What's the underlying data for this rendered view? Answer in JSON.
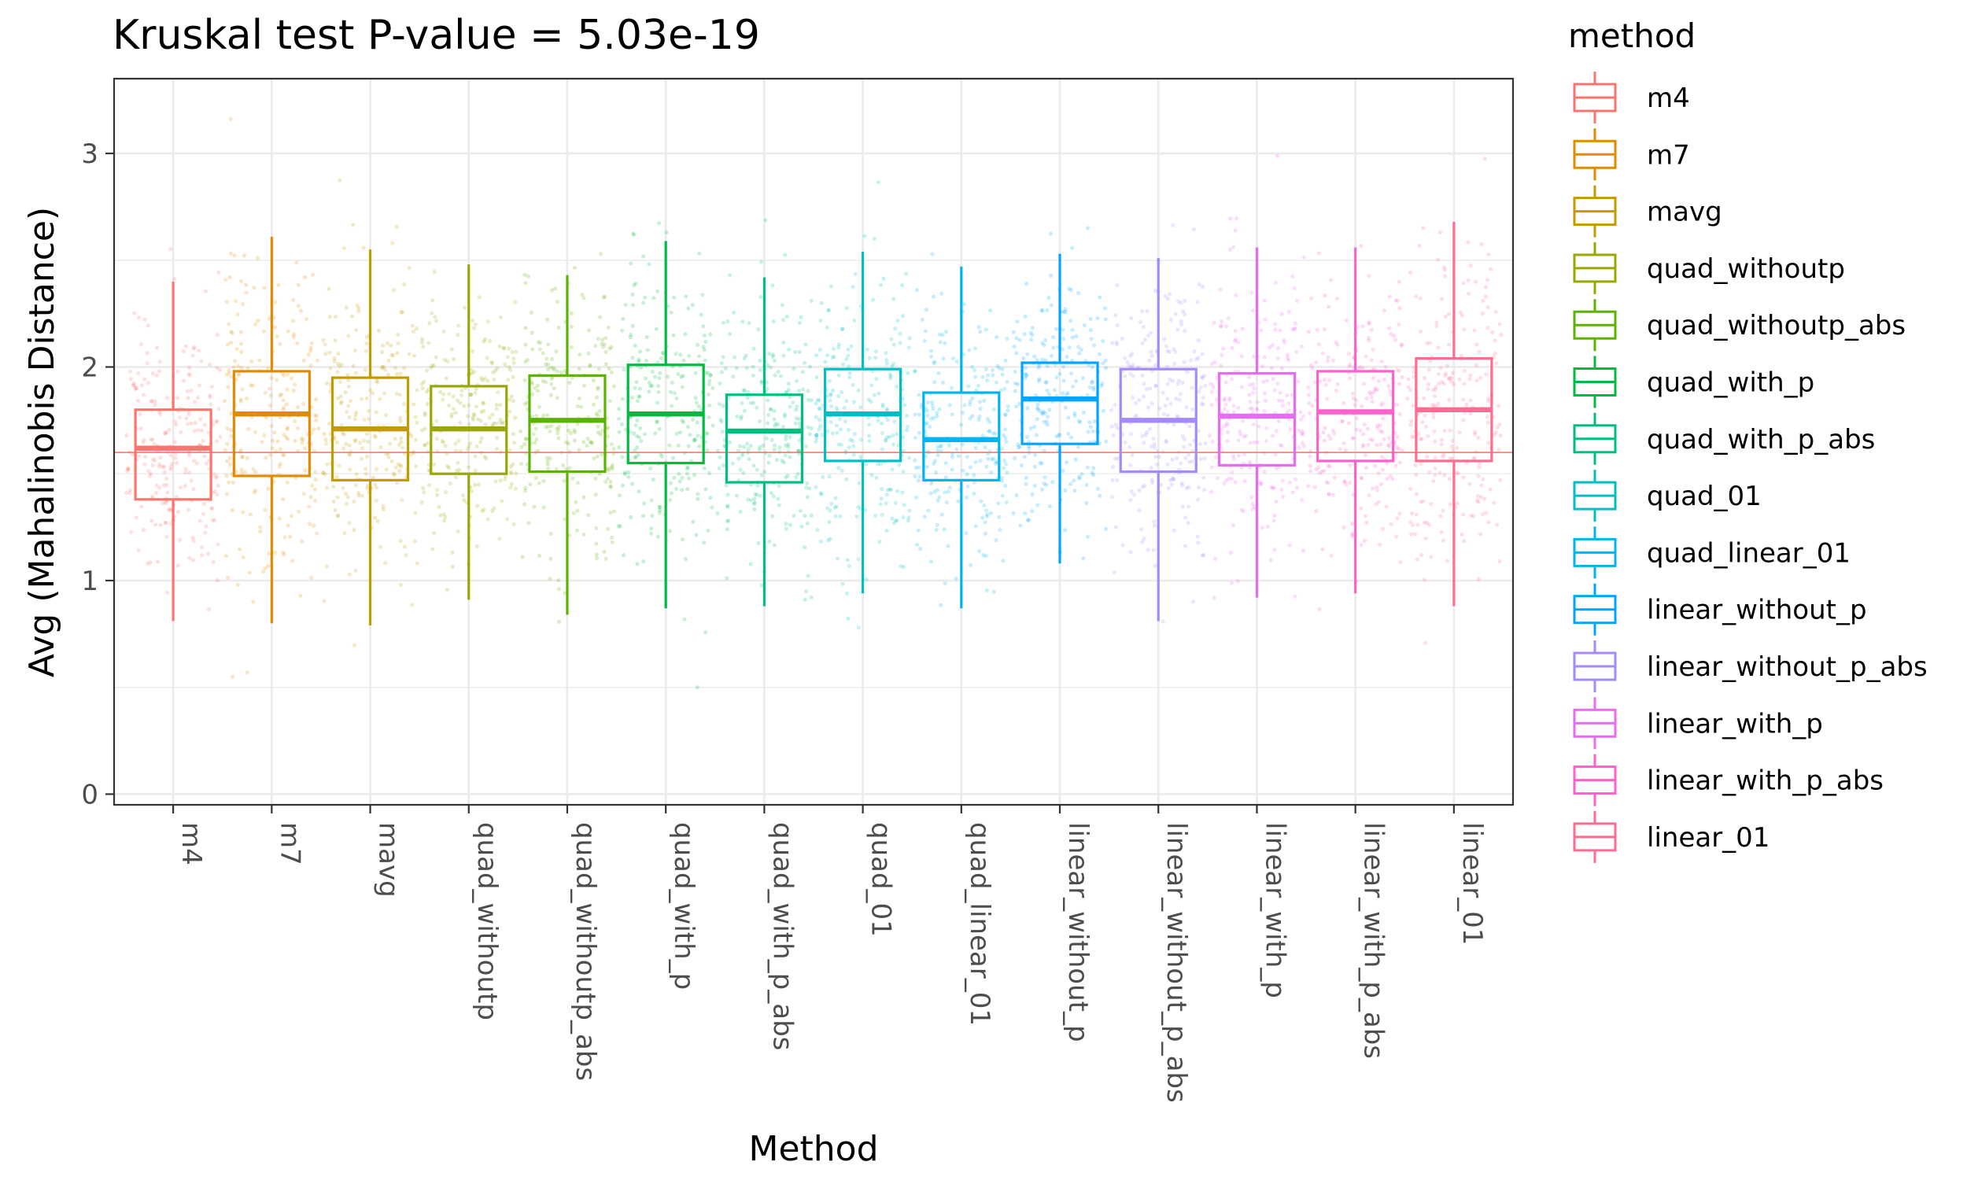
{
  "chart_data": {
    "type": "box",
    "title": "Kruskal test P-value = 5.03e-19",
    "xlabel": "Method",
    "ylabel": "Avg (Mahalinobis Distance)",
    "ylim": [
      -0.05,
      3.35
    ],
    "yticks": [
      0,
      1,
      2,
      3
    ],
    "grid": true,
    "reference_line": 1.6,
    "reference_line_color": "#F8766D",
    "legend_title": "method",
    "legend_position": "right",
    "categories": [
      "m4",
      "m7",
      "mavg",
      "quad_withoutp",
      "quad_withoutp_abs",
      "quad_with_p",
      "quad_with_p_abs",
      "quad_01",
      "quad_linear_01",
      "linear_without_p",
      "linear_without_p_abs",
      "linear_with_p",
      "linear_with_p_abs",
      "linear_01"
    ],
    "colors": [
      "#F8766D",
      "#E08B00",
      "#C49A00",
      "#99A800",
      "#5BB300",
      "#00BA42",
      "#00BF7D",
      "#00BFC4",
      "#00B4EF",
      "#00A5FF",
      "#A58AFF",
      "#E76BF3",
      "#FF61C9",
      "#FF6C91"
    ],
    "series": [
      {
        "category": "m4",
        "min": 0.81,
        "q1": 1.38,
        "median": 1.62,
        "q3": 1.8,
        "max": 2.4
      },
      {
        "category": "m7",
        "min": 0.8,
        "q1": 1.49,
        "median": 1.78,
        "q3": 1.98,
        "max": 2.61
      },
      {
        "category": "mavg",
        "min": 0.79,
        "q1": 1.47,
        "median": 1.71,
        "q3": 1.95,
        "max": 2.55
      },
      {
        "category": "quad_withoutp",
        "min": 0.91,
        "q1": 1.5,
        "median": 1.71,
        "q3": 1.91,
        "max": 2.48
      },
      {
        "category": "quad_withoutp_abs",
        "min": 0.84,
        "q1": 1.51,
        "median": 1.75,
        "q3": 1.96,
        "max": 2.43
      },
      {
        "category": "quad_with_p",
        "min": 0.87,
        "q1": 1.55,
        "median": 1.78,
        "q3": 2.01,
        "max": 2.59
      },
      {
        "category": "quad_with_p_abs",
        "min": 0.88,
        "q1": 1.46,
        "median": 1.7,
        "q3": 1.87,
        "max": 2.42
      },
      {
        "category": "quad_01",
        "min": 0.94,
        "q1": 1.56,
        "median": 1.78,
        "q3": 1.99,
        "max": 2.54
      },
      {
        "category": "quad_linear_01",
        "min": 0.87,
        "q1": 1.47,
        "median": 1.66,
        "q3": 1.88,
        "max": 2.47
      },
      {
        "category": "linear_without_p",
        "min": 1.08,
        "q1": 1.64,
        "median": 1.85,
        "q3": 2.02,
        "max": 2.53
      },
      {
        "category": "linear_without_p_abs",
        "min": 0.81,
        "q1": 1.51,
        "median": 1.75,
        "q3": 1.99,
        "max": 2.51
      },
      {
        "category": "linear_with_p",
        "min": 0.92,
        "q1": 1.54,
        "median": 1.77,
        "q3": 1.97,
        "max": 2.56
      },
      {
        "category": "linear_with_p_abs",
        "min": 0.94,
        "q1": 1.56,
        "median": 1.79,
        "q3": 1.98,
        "max": 2.56
      },
      {
        "category": "linear_01",
        "min": 0.88,
        "q1": 1.56,
        "median": 1.8,
        "q3": 2.04,
        "max": 2.68
      }
    ]
  }
}
